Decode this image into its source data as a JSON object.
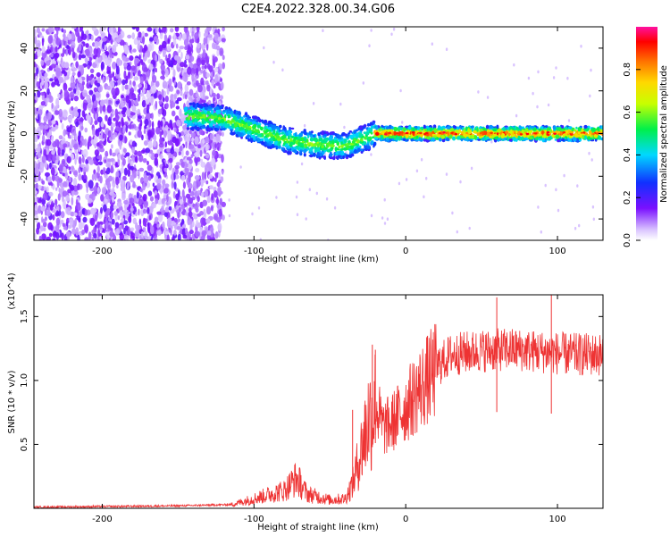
{
  "title": "C2E4.2022.328.00.34.G06",
  "colors": {
    "scatter_base": "#7a10ff",
    "snr_line": "#ee3333",
    "axis": "#000000"
  },
  "chart_data": [
    {
      "type": "heatmap",
      "xlabel": "Height of straight line (km)",
      "ylabel": "Frequency (Hz)",
      "xlim": [
        -245,
        130
      ],
      "ylim": [
        -50,
        50
      ],
      "xticks": [
        -200,
        -100,
        0,
        100
      ],
      "yticks": [
        -40,
        -20,
        0,
        20,
        40
      ],
      "colorbar": {
        "label": "Normalized spectral amplitude",
        "range": [
          0.0,
          1.0
        ],
        "ticks": [
          0.0,
          0.2,
          0.4,
          0.6,
          0.8
        ],
        "colormap": "rainbow (purple-blue-cyan-green-yellow-orange-red-magenta)"
      },
      "frequency_trend": {
        "x": [
          -140,
          -120,
          -100,
          -80,
          -60,
          -40,
          -30,
          -20,
          0,
          50,
          100,
          130
        ],
        "y": [
          8,
          7,
          2,
          -3,
          -5,
          -6,
          -3,
          0,
          0,
          0,
          0,
          0
        ]
      },
      "noise_region_x": [
        -245,
        -120
      ]
    },
    {
      "type": "line",
      "xlabel": "Height of straight line (km)",
      "ylabel": "SNR (10 * v/v)",
      "y_multiplier": "(x10^4)",
      "xlim": [
        -245,
        130
      ],
      "ylim": [
        0,
        1.67
      ],
      "xticks": [
        -200,
        -100,
        0,
        100
      ],
      "yticks": [
        0.5,
        1.0,
        1.5
      ],
      "series": [
        {
          "envelope_x": [
            -245,
            -150,
            -115,
            -100,
            -80,
            -72,
            -65,
            -50,
            -40,
            -35,
            -30,
            -25,
            -20,
            -15,
            -10,
            0,
            10,
            20,
            30,
            50,
            70,
            90,
            110,
            130
          ],
          "envelope_y": [
            0.01,
            0.02,
            0.03,
            0.08,
            0.15,
            0.25,
            0.12,
            0.07,
            0.08,
            0.2,
            0.45,
            0.72,
            0.85,
            0.65,
            0.68,
            0.82,
            0.98,
            1.12,
            1.22,
            1.25,
            1.26,
            1.24,
            1.22,
            1.22
          ],
          "spikes": [
            {
              "x": -70,
              "y": 0.32
            },
            {
              "x": -35,
              "y": 0.77
            },
            {
              "x": -22,
              "y": 1.28
            },
            {
              "x": -20,
              "y": 1.24
            },
            {
              "x": -27,
              "y": 0.81
            },
            {
              "x": 60,
              "y": 1.65
            },
            {
              "x": 96,
              "y": 1.67
            }
          ]
        }
      ]
    }
  ]
}
